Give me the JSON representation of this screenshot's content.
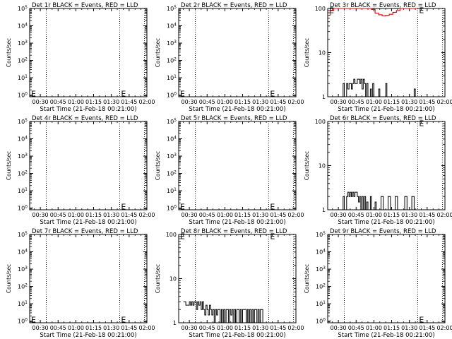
{
  "chart_data": [
    {
      "type": "line",
      "panel_row": 0,
      "panel_col": 0,
      "title": "Det 1r BLACK = Events, RED = LLD",
      "xlabel": "Start Time (21-Feb-18 00:21:00)",
      "ylabel": "Counts/sec",
      "yscale": "log",
      "ylim": [
        0.8,
        100000
      ],
      "yticks": [
        "10^0",
        "10^1",
        "10^2",
        "10^3",
        "10^4",
        "10^5"
      ],
      "xlim": [
        21,
        120
      ],
      "xticks": [
        "00:30",
        "00:45",
        "01:00",
        "01:15",
        "01:30",
        "01:45",
        "02:00"
      ],
      "dotted_lines_min": [
        35,
        97,
        118
      ],
      "markers": [
        {
          "label": "E",
          "x": 21,
          "y": 1.2
        },
        {
          "label": "E",
          "x": 97,
          "y": 1.2
        }
      ],
      "series": []
    },
    {
      "type": "line",
      "panel_row": 0,
      "panel_col": 1,
      "title": "Det 2r BLACK = Events, RED = LLD",
      "xlabel": "Start Time (21-Feb-18 00:21:00)",
      "ylabel": "Counts/sec",
      "yscale": "log",
      "ylim": [
        0.8,
        100000
      ],
      "yticks": [
        "10^0",
        "10^1",
        "10^2",
        "10^3",
        "10^4",
        "10^5"
      ],
      "xlim": [
        21,
        120
      ],
      "xticks": [
        "00:30",
        "00:45",
        "01:00",
        "01:15",
        "01:30",
        "01:45",
        "02:00"
      ],
      "dotted_lines_min": [
        35,
        97,
        118
      ],
      "markers": [
        {
          "label": "E",
          "x": 21,
          "y": 1.2
        },
        {
          "label": "E",
          "x": 97,
          "y": 1.2
        }
      ],
      "series": []
    },
    {
      "type": "line",
      "panel_row": 0,
      "panel_col": 2,
      "title": "Det 3r BLACK = Events, RED = LLD",
      "xlabel": "Start Time (21-Feb-18 00:21:00)",
      "ylabel": "Counts/sec",
      "yscale": "log",
      "ylim": [
        1,
        100
      ],
      "yticks": [
        "1",
        "10",
        "100"
      ],
      "xlim": [
        21,
        120
      ],
      "xticks": [
        "00:30",
        "00:45",
        "01:00",
        "01:15",
        "01:30",
        "01:45",
        "02:00"
      ],
      "dotted_lines_min": [
        35,
        97,
        118
      ],
      "markers": [
        {
          "label": "E",
          "x": 21,
          "y": 92
        },
        {
          "label": "E",
          "x": 97,
          "y": 92
        }
      ],
      "series": [
        {
          "color": "#e00000",
          "x": [
            21,
            23,
            26,
            29,
            31,
            33,
            35,
            37,
            40,
            43,
            46,
            49,
            52,
            55,
            58,
            61,
            64,
            67,
            70,
            73,
            76,
            79,
            82,
            85,
            88,
            91,
            94,
            96,
            97
          ],
          "y": [
            70,
            90,
            100,
            100,
            100,
            100,
            100,
            100,
            100,
            100,
            100,
            100,
            100,
            100,
            95,
            78,
            72,
            68,
            70,
            74,
            82,
            90,
            100,
            100,
            100,
            100,
            100,
            100,
            100
          ]
        },
        {
          "color": "#000000",
          "x": [
            33,
            34,
            35,
            37,
            38,
            39,
            40,
            41,
            42,
            43,
            44,
            45,
            46,
            47,
            48,
            49,
            50,
            51,
            52,
            53,
            54,
            55,
            56,
            57,
            58,
            59,
            60,
            61,
            62,
            63,
            64,
            65,
            66,
            67,
            68,
            69,
            70,
            71,
            72,
            73,
            74,
            75,
            76,
            77,
            78,
            80,
            82,
            84,
            86,
            88,
            90,
            92,
            93,
            94,
            95,
            96
          ],
          "y": [
            1,
            2,
            1,
            2,
            1.5,
            2,
            2,
            1.5,
            2,
            2.5,
            2,
            2,
            2.5,
            2.5,
            2,
            2.5,
            1.5,
            2.5,
            2,
            1,
            2,
            1,
            1,
            1.5,
            1,
            2,
            1,
            1,
            1,
            1,
            1.5,
            1,
            1,
            1,
            1,
            1,
            2,
            1,
            1,
            1,
            1,
            1,
            1,
            1,
            1,
            1,
            1,
            1,
            1,
            1,
            1,
            1,
            1,
            1.5,
            1,
            1
          ]
        }
      ]
    },
    {
      "type": "line",
      "panel_row": 1,
      "panel_col": 0,
      "title": "Det 4r BLACK = Events, RED = LLD",
      "xlabel": "Start Time (21-Feb-18 00:21:00)",
      "ylabel": "Counts/sec",
      "yscale": "log",
      "ylim": [
        0.8,
        100000
      ],
      "yticks": [
        "10^0",
        "10^1",
        "10^2",
        "10^3",
        "10^4",
        "10^5"
      ],
      "xlim": [
        21,
        120
      ],
      "xticks": [
        "00:30",
        "00:45",
        "01:00",
        "01:15",
        "01:30",
        "01:45",
        "02:00"
      ],
      "dotted_lines_min": [
        35,
        97,
        118
      ],
      "markers": [
        {
          "label": "E",
          "x": 97,
          "y": 1.2
        }
      ],
      "series": []
    },
    {
      "type": "line",
      "panel_row": 1,
      "panel_col": 1,
      "title": "Det 5r BLACK = Events, RED = LLD",
      "xlabel": "Start Time (21-Feb-18 00:21:00)",
      "ylabel": "Counts/sec",
      "yscale": "log",
      "ylim": [
        0.8,
        100000
      ],
      "yticks": [
        "10^0",
        "10^1",
        "10^2",
        "10^3",
        "10^4",
        "10^5"
      ],
      "xlim": [
        21,
        120
      ],
      "xticks": [
        "00:30",
        "00:45",
        "01:00",
        "01:15",
        "01:30",
        "01:45",
        "02:00"
      ],
      "dotted_lines_min": [
        35,
        97,
        118
      ],
      "markers": [
        {
          "label": "E",
          "x": 21,
          "y": 1.2
        },
        {
          "label": "E",
          "x": 97,
          "y": 1.2
        }
      ],
      "series": []
    },
    {
      "type": "line",
      "panel_row": 1,
      "panel_col": 2,
      "title": "Det 6r BLACK = Events, RED = LLD",
      "xlabel": "Start Time (21-Feb-18 00:21:00)",
      "ylabel": "Counts/sec",
      "yscale": "log",
      "ylim": [
        1,
        100
      ],
      "yticks": [
        "1",
        "10",
        "100"
      ],
      "xlim": [
        21,
        120
      ],
      "xticks": [
        "00:30",
        "00:45",
        "01:00",
        "01:15",
        "01:30",
        "01:45",
        "02:00"
      ],
      "dotted_lines_min": [
        35,
        97,
        118
      ],
      "markers": [
        {
          "label": "E",
          "x": 97,
          "y": 92
        }
      ],
      "series": [
        {
          "color": "#000000",
          "x": [
            33,
            34,
            35,
            37,
            38,
            39,
            40,
            41,
            42,
            43,
            44,
            45,
            46,
            47,
            48,
            49,
            50,
            51,
            52,
            53,
            54,
            55,
            56,
            57,
            58,
            59,
            60,
            61,
            62,
            63,
            64,
            66,
            68,
            70,
            72,
            74,
            76,
            78,
            80,
            82,
            84,
            86,
            88,
            90,
            92,
            94,
            95,
            96
          ],
          "y": [
            1,
            2,
            1,
            2,
            2.5,
            2,
            2.5,
            2,
            2.5,
            2,
            2.5,
            2.5,
            2,
            1.5,
            2,
            1,
            2,
            1,
            2,
            1,
            1.5,
            1,
            1,
            2,
            1,
            1,
            1,
            1.5,
            1,
            1,
            1,
            2,
            1,
            1,
            2,
            1,
            1,
            2,
            1,
            1,
            1,
            2,
            1,
            1,
            2,
            1,
            1,
            1
          ]
        }
      ]
    },
    {
      "type": "line",
      "panel_row": 2,
      "panel_col": 0,
      "title": "Det 7r BLACK = Events, RED = LLD",
      "xlabel": "Start Time (21-Feb-18 00:21:00)",
      "ylabel": "Counts/sec",
      "yscale": "log",
      "ylim": [
        0.8,
        100000
      ],
      "yticks": [
        "10^0",
        "10^1",
        "10^2",
        "10^3",
        "10^4",
        "10^5"
      ],
      "xlim": [
        21,
        120
      ],
      "xticks": [
        "00:30",
        "00:45",
        "01:00",
        "01:15",
        "01:30",
        "01:45",
        "02:00"
      ],
      "dotted_lines_min": [
        35,
        97,
        118
      ],
      "markers": [
        {
          "label": "E",
          "x": 21,
          "y": 1.2
        },
        {
          "label": "E",
          "x": 97,
          "y": 1.2
        }
      ],
      "series": []
    },
    {
      "type": "line",
      "panel_row": 2,
      "panel_col": 1,
      "title": "Det 8r BLACK = Events, RED = LLD",
      "xlabel": "Start Time (21-Feb-18 00:21:00)",
      "ylabel": "Counts/sec",
      "yscale": "log",
      "ylim": [
        1,
        100
      ],
      "yticks": [
        "1",
        "10",
        "100"
      ],
      "xlim": [
        21,
        120
      ],
      "xticks": [
        "00:30",
        "00:45",
        "01:00",
        "01:15",
        "01:30",
        "01:45",
        "02:00"
      ],
      "dotted_lines_min": [
        35,
        97,
        118
      ],
      "markers": [
        {
          "label": "E",
          "x": 21,
          "y": 92
        },
        {
          "label": "E",
          "x": 97,
          "y": 92
        }
      ],
      "series": [
        {
          "color": "#000000",
          "x": [
            25,
            27,
            30,
            31,
            32,
            33,
            34,
            35,
            36,
            37,
            38,
            39,
            40,
            41,
            42,
            43,
            44,
            45,
            46,
            47,
            48,
            49,
            50,
            51,
            52,
            53,
            54,
            55,
            56,
            57,
            58,
            59,
            60,
            61,
            62,
            63,
            64,
            65,
            66,
            67,
            68,
            69,
            70,
            71,
            72,
            73,
            74,
            75,
            76,
            77,
            78,
            79,
            80,
            81,
            82,
            83,
            84,
            85,
            86,
            87,
            88,
            89,
            90,
            91,
            92
          ],
          "y": [
            3,
            2.5,
            3,
            2.5,
            3,
            2.5,
            3,
            3,
            2,
            3,
            2.5,
            3,
            2,
            3,
            2,
            1.5,
            2.5,
            2,
            1.5,
            2.5,
            2,
            1.5,
            2,
            1,
            2,
            1.5,
            2,
            2,
            1,
            2,
            1,
            2,
            1,
            2,
            2,
            1,
            2,
            1.5,
            2,
            1,
            2,
            1,
            2,
            2,
            1,
            2,
            1,
            2,
            2,
            2,
            1,
            2,
            1,
            2,
            1,
            2,
            1,
            2,
            2,
            1,
            2,
            1,
            2,
            2,
            1
          ]
        }
      ]
    },
    {
      "type": "line",
      "panel_row": 2,
      "panel_col": 2,
      "title": "Det 9r BLACK = Events, RED = LLD",
      "xlabel": "Start Time (21-Feb-18 00:21:00)",
      "ylabel": "Counts/sec",
      "yscale": "log",
      "ylim": [
        0.8,
        100000
      ],
      "yticks": [
        "10^0",
        "10^1",
        "10^2",
        "10^3",
        "10^4",
        "10^5"
      ],
      "xlim": [
        21,
        120
      ],
      "xticks": [
        "00:30",
        "00:45",
        "01:00",
        "01:15",
        "01:30",
        "01:45",
        "02:00"
      ],
      "dotted_lines_min": [
        35,
        97,
        118
      ],
      "markers": [
        {
          "label": "E",
          "x": 97,
          "y": 1.2
        }
      ],
      "series": []
    }
  ]
}
